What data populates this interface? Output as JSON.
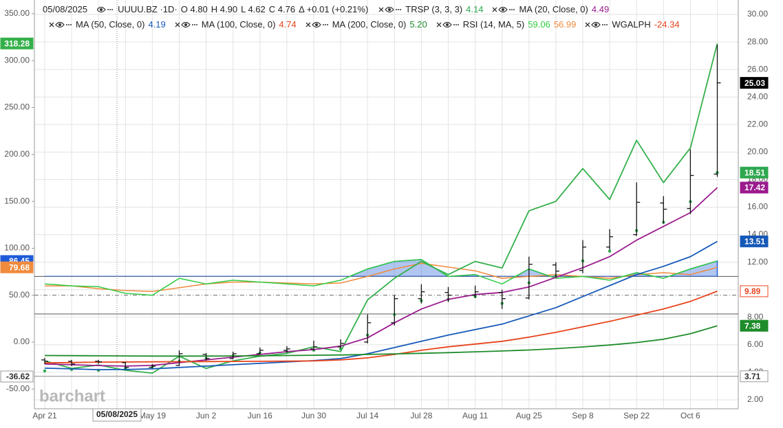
{
  "chart_data": {
    "type": "ohlc",
    "watermark": "barchart",
    "categories": [
      "Apr 21",
      null,
      null,
      null,
      "May 19",
      null,
      "Jun 2",
      null,
      "Jun 16",
      null,
      "Jun 30",
      null,
      "Jul 14",
      null,
      "Jul 28",
      null,
      "Aug 11",
      null,
      "Aug 25",
      null,
      "Sep 8",
      null,
      "Sep 22",
      null,
      "Oct 6",
      null
    ],
    "ylim": [
      1.35,
      31.05
    ],
    "yticks": [
      {
        "value": 2,
        "label": "2.00"
      },
      {
        "value": 4,
        "label": "4.00"
      },
      {
        "value": 6,
        "label": "6.00"
      },
      {
        "value": 8,
        "label": "8.00"
      },
      {
        "value": 10,
        "label": "10.00"
      },
      {
        "value": 12,
        "label": "12.00"
      },
      {
        "value": 14,
        "label": "14.00"
      },
      {
        "value": 16,
        "label": "16.00"
      },
      {
        "value": 18,
        "label": "18.00"
      },
      {
        "value": 20,
        "label": "20.00"
      },
      {
        "value": 22,
        "label": "22.00"
      },
      {
        "value": 24,
        "label": "24.00"
      },
      {
        "value": 26,
        "label": "26.00"
      },
      {
        "value": 28,
        "label": "28.00"
      },
      {
        "value": 30,
        "label": "30.00"
      }
    ],
    "y2lim": [
      -71.0,
      364.6
    ],
    "y2ticks": [
      {
        "value": -50,
        "label": "-50.00"
      },
      {
        "value": 0,
        "label": "0.00"
      },
      {
        "value": 50,
        "label": "50.00"
      },
      {
        "value": 100,
        "label": "100.00"
      },
      {
        "value": 150,
        "label": "150.00"
      },
      {
        "value": 200,
        "label": "200.00"
      },
      {
        "value": 250,
        "label": "250.00"
      },
      {
        "value": 300,
        "label": "300.00"
      },
      {
        "value": 350,
        "label": "350.00"
      }
    ],
    "grid": true,
    "crosshair": {
      "date_label": "05/08/2025",
      "left_value": -36.62,
      "right_value": 3.71
    },
    "price": {
      "date": "05/08/2025",
      "name": "UUUU.BZ ·1D·",
      "readout": [
        "O 4.80",
        "H 4.90",
        "L 4.62",
        "C 4.76",
        "Δ +0.01 (+0.21%)"
      ],
      "color": "#111111",
      "tag_color": "#000000",
      "open": [
        4.9,
        4.8,
        4.8,
        4.7,
        4.35,
        4.5,
        5.3,
        5.0,
        5.35,
        5.6,
        5.7,
        5.85,
        6.2,
        7.6,
        9.35,
        9.8,
        9.6,
        9.8,
        9.4,
        11.8,
        11.4,
        13.1,
        14.0,
        16.3,
        15.9,
        18.4
      ],
      "high": [
        5.05,
        4.9,
        4.9,
        4.75,
        4.6,
        5.6,
        5.4,
        5.5,
        5.8,
        5.9,
        6.3,
        6.4,
        8.2,
        9.6,
        10.4,
        10.2,
        10.3,
        10.0,
        12.4,
        12.0,
        13.6,
        14.4,
        17.8,
        16.8,
        20.2,
        27.8
      ],
      "low": [
        4.6,
        4.45,
        4.62,
        4.25,
        4.3,
        4.45,
        4.85,
        4.95,
        5.3,
        5.45,
        5.6,
        5.75,
        6.1,
        7.4,
        9.0,
        9.1,
        9.4,
        8.6,
        9.3,
        10.9,
        11.2,
        12.9,
        13.9,
        14.8,
        15.5,
        18.2
      ],
      "close": [
        4.8,
        4.6,
        4.76,
        4.35,
        4.45,
        5.35,
        5.0,
        5.35,
        5.6,
        5.7,
        5.85,
        6.1,
        7.6,
        9.35,
        9.85,
        9.6,
        9.85,
        9.35,
        11.85,
        11.35,
        13.1,
        13.85,
        16.35,
        15.85,
        18.3,
        25.03
      ]
    },
    "series": [
      {
        "name": "TRSP (3, 3, 3)",
        "readout": "4.14",
        "color": "#2ea84f",
        "style": "dots",
        "values": [
          4.1,
          4.2,
          4.14,
          4.3,
          4.4,
          4.8,
          5.0,
          5.2,
          5.4,
          5.5,
          5.6,
          5.7,
          6.7,
          8.2,
          9.2,
          9.3,
          9.5,
          9.0,
          10.5,
          11.0,
          12.1,
          12.8,
          14.3,
          14.9,
          16.4,
          18.51
        ]
      },
      {
        "name": "MA (20, Close, 0)",
        "readout": "4.49",
        "color": "#9b1b8e",
        "style": "line",
        "values": [
          4.6,
          4.55,
          4.49,
          4.45,
          4.5,
          4.7,
          4.9,
          5.1,
          5.3,
          5.5,
          5.65,
          5.9,
          6.5,
          7.6,
          8.6,
          9.3,
          9.65,
          9.8,
          10.2,
          10.9,
          11.6,
          12.4,
          13.6,
          14.6,
          15.6,
          17.42
        ]
      },
      {
        "name": "MA (50, Close, 0)",
        "readout": "4.19",
        "color": "#1558b8",
        "style": "line",
        "values": [
          4.3,
          4.25,
          4.19,
          4.2,
          4.25,
          4.35,
          4.45,
          4.55,
          4.65,
          4.75,
          4.85,
          5.0,
          5.35,
          5.8,
          6.25,
          6.7,
          7.1,
          7.5,
          8.1,
          8.7,
          9.5,
          10.3,
          11.1,
          11.7,
          12.4,
          13.51
        ]
      },
      {
        "name": "MA (100, Close, 0)",
        "readout": "4.74",
        "color": "#e8441c",
        "style": "line",
        "tag_style": "outline",
        "values": [
          4.68,
          4.71,
          4.74,
          4.75,
          4.76,
          4.77,
          4.78,
          4.79,
          4.8,
          4.81,
          4.83,
          4.9,
          5.05,
          5.3,
          5.6,
          5.85,
          6.05,
          6.25,
          6.55,
          6.9,
          7.3,
          7.7,
          8.15,
          8.6,
          9.15,
          9.89
        ]
      },
      {
        "name": "MA (200, Close, 0)",
        "readout": "5.20",
        "color": "#1e8c2a",
        "style": "line",
        "values": [
          5.22,
          5.21,
          5.2,
          5.19,
          5.18,
          5.18,
          5.18,
          5.19,
          5.2,
          5.22,
          5.24,
          5.26,
          5.3,
          5.34,
          5.38,
          5.43,
          5.49,
          5.55,
          5.62,
          5.72,
          5.84,
          5.98,
          6.16,
          6.4,
          6.8,
          7.38
        ]
      }
    ],
    "rsi": {
      "name": "RSI (14, MA, 5)",
      "readout": "59.06",
      "ma_readout": "56.99",
      "axis": "y2",
      "color": "#2ecc40",
      "ma_color": "#f08a3c",
      "fill_color": "#1e5bd8",
      "levels": [
        30,
        50,
        70
      ],
      "values": [
        62,
        60,
        59.06,
        52,
        50,
        68,
        62,
        66,
        64,
        62,
        60,
        66,
        78,
        86,
        88,
        70,
        72,
        62,
        78,
        68,
        70,
        66,
        74,
        68,
        78,
        86.45
      ],
      "ma_values": [
        60,
        60,
        56.99,
        55,
        54,
        58,
        62,
        64,
        64,
        63,
        62,
        63,
        70,
        78,
        84,
        80,
        76,
        68,
        70,
        72,
        70,
        68,
        72,
        74,
        72,
        79.68
      ]
    },
    "wgalph": {
      "name": "WGALPH",
      "readout": "-24.34",
      "readout_color": "#e8441c",
      "axis": "y2",
      "color": "#34b04a",
      "values": [
        -20,
        -28,
        -24.34,
        -30,
        -33,
        -15,
        -28,
        -20,
        -15,
        -12,
        -5,
        -10,
        45,
        68,
        86,
        72,
        86,
        79,
        140,
        150,
        185,
        152,
        215,
        170,
        207,
        318.28
      ]
    }
  }
}
